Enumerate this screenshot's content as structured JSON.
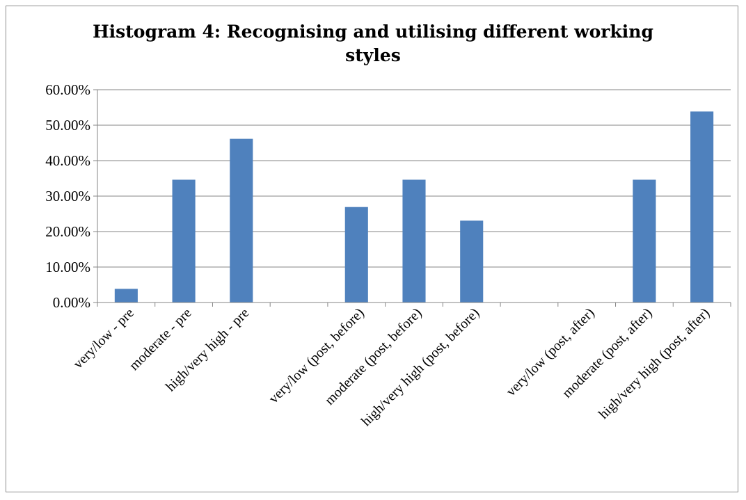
{
  "chart_data": {
    "type": "bar",
    "title": "Histogram 4:  Recognising and utilising different working styles",
    "xlabel": "",
    "ylabel": "",
    "categories": [
      "very/low - pre",
      "moderate - pre",
      "high/very high - pre",
      "",
      "very/low (post, before)",
      "moderate (post, before)",
      "high/very high (post, before)",
      "",
      "very/low (post, after)",
      "moderate (post, after)",
      "high/very high (post, after)"
    ],
    "values": [
      3.85,
      34.62,
      46.15,
      0,
      26.92,
      34.62,
      23.08,
      0,
      0,
      34.62,
      53.85
    ],
    "ylim": [
      0,
      60
    ],
    "yticks": [
      "0.00%",
      "10.00%",
      "20.00%",
      "30.00%",
      "40.00%",
      "50.00%",
      "60.00%"
    ],
    "bar_color": "#4f81bd",
    "grid": true,
    "legend": "none"
  }
}
